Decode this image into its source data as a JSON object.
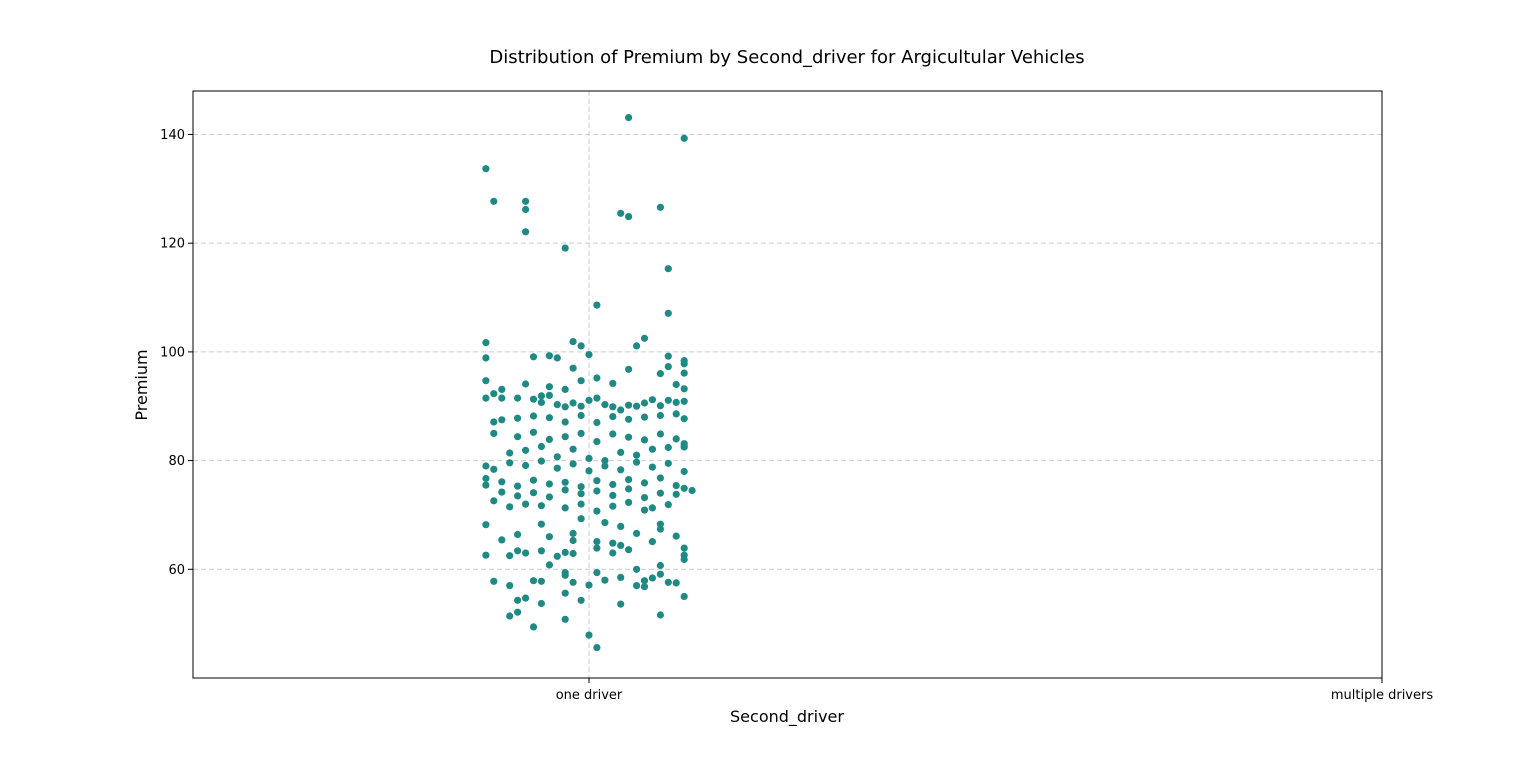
{
  "chart_data": {
    "type": "scatter",
    "subtype": "strip",
    "title": "Distribution of Premium by Second_driver for Argicultular Vehicles",
    "xlabel": "Second_driver",
    "ylabel": "Premium",
    "categories": [
      "one driver",
      "multiple drivers"
    ],
    "ylim": [
      40,
      148
    ],
    "yticks": [
      60,
      80,
      100,
      120,
      140
    ],
    "grid": true,
    "point_color": "#1f8a84",
    "series": [
      {
        "category": "one driver",
        "points": [
          [
            -0.13,
            133.7
          ],
          [
            -0.12,
            127.7
          ],
          [
            -0.08,
            126.2
          ],
          [
            -0.08,
            127.7
          ],
          [
            -0.08,
            122.1
          ],
          [
            -0.03,
            119.1
          ],
          [
            0.05,
            143.1
          ],
          [
            0.12,
            139.3
          ],
          [
            0.04,
            125.5
          ],
          [
            0.05,
            124.9
          ],
          [
            0.09,
            126.6
          ],
          [
            0.1,
            115.3
          ],
          [
            0.1,
            107.1
          ],
          [
            0.01,
            108.6
          ],
          [
            -0.13,
            101.7
          ],
          [
            -0.13,
            98.9
          ],
          [
            -0.07,
            99.1
          ],
          [
            -0.05,
            99.3
          ],
          [
            -0.04,
            98.9
          ],
          [
            -0.02,
            101.9
          ],
          [
            -0.01,
            101.1
          ],
          [
            0.0,
            99.5
          ],
          [
            0.07,
            102.5
          ],
          [
            0.06,
            101.1
          ],
          [
            0.1,
            99.2
          ],
          [
            0.12,
            98.4
          ],
          [
            0.12,
            97.8
          ],
          [
            0.05,
            96.8
          ],
          [
            -0.13,
            94.7
          ],
          [
            -0.12,
            92.3
          ],
          [
            -0.11,
            93.1
          ],
          [
            -0.13,
            91.5
          ],
          [
            -0.11,
            91.5
          ],
          [
            -0.09,
            91.5
          ],
          [
            -0.07,
            91.3
          ],
          [
            -0.06,
            91.9
          ],
          [
            -0.06,
            90.7
          ],
          [
            -0.05,
            92.0
          ],
          [
            -0.04,
            90.3
          ],
          [
            -0.03,
            89.9
          ],
          [
            -0.02,
            90.6
          ],
          [
            -0.01,
            90.0
          ],
          [
            0.0,
            91.1
          ],
          [
            0.01,
            91.5
          ],
          [
            0.02,
            90.3
          ],
          [
            0.03,
            89.9
          ],
          [
            0.04,
            89.3
          ],
          [
            0.05,
            90.2
          ],
          [
            0.06,
            90.0
          ],
          [
            0.07,
            90.6
          ],
          [
            0.08,
            91.2
          ],
          [
            0.09,
            90.1
          ],
          [
            0.1,
            91.1
          ],
          [
            0.11,
            90.7
          ],
          [
            0.12,
            90.9
          ],
          [
            0.12,
            93.2
          ],
          [
            0.11,
            94.0
          ],
          [
            0.09,
            96.0
          ],
          [
            0.12,
            96.1
          ],
          [
            0.1,
            97.3
          ],
          [
            -0.08,
            94.1
          ],
          [
            -0.05,
            93.6
          ],
          [
            -0.03,
            93.1
          ],
          [
            -0.01,
            94.7
          ],
          [
            0.01,
            95.2
          ],
          [
            0.03,
            94.2
          ],
          [
            -0.02,
            97.0
          ],
          [
            -0.12,
            87.1
          ],
          [
            -0.11,
            87.5
          ],
          [
            -0.09,
            87.8
          ],
          [
            -0.07,
            88.2
          ],
          [
            -0.05,
            87.9
          ],
          [
            -0.03,
            87.1
          ],
          [
            -0.01,
            88.3
          ],
          [
            0.01,
            87.0
          ],
          [
            0.03,
            88.1
          ],
          [
            0.05,
            87.6
          ],
          [
            0.07,
            88.0
          ],
          [
            0.09,
            88.3
          ],
          [
            0.11,
            88.6
          ],
          [
            0.12,
            87.7
          ],
          [
            -0.12,
            85.0
          ],
          [
            -0.09,
            84.4
          ],
          [
            -0.07,
            85.2
          ],
          [
            -0.05,
            83.9
          ],
          [
            -0.03,
            84.4
          ],
          [
            -0.01,
            85.0
          ],
          [
            0.01,
            83.5
          ],
          [
            0.03,
            84.9
          ],
          [
            0.05,
            84.3
          ],
          [
            0.07,
            83.8
          ],
          [
            0.09,
            84.9
          ],
          [
            0.11,
            84.0
          ],
          [
            0.12,
            83.1
          ],
          [
            0.12,
            82.5
          ],
          [
            -0.1,
            81.4
          ],
          [
            -0.08,
            81.9
          ],
          [
            -0.06,
            82.6
          ],
          [
            -0.04,
            80.7
          ],
          [
            -0.02,
            82.1
          ],
          [
            0.0,
            80.4
          ],
          [
            0.02,
            80.0
          ],
          [
            0.04,
            81.5
          ],
          [
            0.06,
            81.0
          ],
          [
            0.08,
            82.1
          ],
          [
            0.1,
            82.4
          ],
          [
            0.12,
            82.7
          ],
          [
            -0.13,
            79.0
          ],
          [
            -0.12,
            78.4
          ],
          [
            -0.1,
            79.6
          ],
          [
            -0.08,
            79.1
          ],
          [
            -0.06,
            79.9
          ],
          [
            -0.04,
            78.6
          ],
          [
            -0.02,
            79.4
          ],
          [
            0.0,
            78.1
          ],
          [
            0.02,
            79.0
          ],
          [
            0.04,
            78.3
          ],
          [
            0.06,
            79.7
          ],
          [
            0.08,
            78.8
          ],
          [
            0.1,
            79.5
          ],
          [
            0.12,
            78.0
          ],
          [
            -0.13,
            76.7
          ],
          [
            -0.13,
            75.5
          ],
          [
            -0.11,
            76.1
          ],
          [
            -0.09,
            75.3
          ],
          [
            -0.07,
            76.4
          ],
          [
            -0.05,
            75.7
          ],
          [
            -0.03,
            76.0
          ],
          [
            -0.01,
            75.2
          ],
          [
            0.01,
            76.3
          ],
          [
            0.03,
            75.6
          ],
          [
            0.05,
            76.5
          ],
          [
            0.07,
            75.9
          ],
          [
            0.09,
            76.8
          ],
          [
            0.11,
            75.4
          ],
          [
            0.12,
            74.9
          ],
          [
            0.13,
            74.5
          ],
          [
            -0.11,
            74.2
          ],
          [
            -0.09,
            73.5
          ],
          [
            -0.07,
            74.1
          ],
          [
            -0.05,
            73.3
          ],
          [
            -0.03,
            74.6
          ],
          [
            -0.01,
            73.9
          ],
          [
            0.01,
            74.4
          ],
          [
            0.03,
            73.6
          ],
          [
            0.05,
            74.8
          ],
          [
            0.07,
            73.2
          ],
          [
            0.09,
            74.0
          ],
          [
            0.11,
            73.8
          ],
          [
            -0.12,
            72.6
          ],
          [
            -0.1,
            71.5
          ],
          [
            -0.08,
            72.0
          ],
          [
            -0.06,
            71.7
          ],
          [
            -0.03,
            71.3
          ],
          [
            -0.01,
            72.0
          ],
          [
            0.01,
            70.7
          ],
          [
            0.03,
            71.6
          ],
          [
            0.05,
            72.3
          ],
          [
            0.07,
            70.9
          ],
          [
            0.08,
            71.3
          ],
          [
            0.1,
            71.9
          ],
          [
            -0.13,
            68.2
          ],
          [
            -0.06,
            68.3
          ],
          [
            -0.01,
            69.3
          ],
          [
            0.02,
            68.6
          ],
          [
            0.04,
            67.9
          ],
          [
            0.09,
            67.4
          ],
          [
            0.09,
            68.3
          ],
          [
            -0.11,
            65.4
          ],
          [
            -0.09,
            66.4
          ],
          [
            -0.05,
            66.0
          ],
          [
            -0.02,
            66.6
          ],
          [
            -0.02,
            65.3
          ],
          [
            0.01,
            65.1
          ],
          [
            0.03,
            64.8
          ],
          [
            0.04,
            64.4
          ],
          [
            0.06,
            66.6
          ],
          [
            0.08,
            65.1
          ],
          [
            0.11,
            66.1
          ],
          [
            0.12,
            63.9
          ],
          [
            -0.13,
            62.6
          ],
          [
            -0.1,
            62.5
          ],
          [
            -0.09,
            63.4
          ],
          [
            -0.08,
            63.0
          ],
          [
            -0.06,
            63.4
          ],
          [
            -0.04,
            62.4
          ],
          [
            -0.03,
            63.1
          ],
          [
            -0.02,
            62.9
          ],
          [
            0.01,
            63.9
          ],
          [
            0.03,
            63.0
          ],
          [
            0.05,
            63.6
          ],
          [
            0.12,
            62.6
          ],
          [
            0.12,
            61.8
          ],
          [
            -0.12,
            57.8
          ],
          [
            -0.1,
            57.0
          ],
          [
            -0.07,
            57.9
          ],
          [
            -0.06,
            57.8
          ],
          [
            -0.03,
            58.9
          ],
          [
            -0.02,
            57.6
          ],
          [
            0.0,
            57.1
          ],
          [
            0.01,
            59.4
          ],
          [
            0.02,
            58.0
          ],
          [
            0.04,
            58.5
          ],
          [
            0.06,
            57.0
          ],
          [
            0.07,
            57.9
          ],
          [
            0.08,
            58.4
          ],
          [
            0.09,
            59.1
          ],
          [
            0.1,
            57.6
          ],
          [
            0.11,
            57.5
          ],
          [
            0.09,
            60.7
          ],
          [
            0.06,
            60.0
          ],
          [
            -0.05,
            60.8
          ],
          [
            -0.03,
            59.4
          ],
          [
            -0.09,
            54.3
          ],
          [
            -0.08,
            54.7
          ],
          [
            -0.06,
            53.7
          ],
          [
            -0.03,
            55.6
          ],
          [
            -0.01,
            54.3
          ],
          [
            0.04,
            53.6
          ],
          [
            0.07,
            56.8
          ],
          [
            0.12,
            55.0
          ],
          [
            -0.1,
            51.4
          ],
          [
            -0.09,
            52.1
          ],
          [
            -0.07,
            49.4
          ],
          [
            -0.03,
            50.8
          ],
          [
            0.09,
            51.6
          ],
          [
            0.0,
            47.9
          ],
          [
            0.01,
            45.6
          ]
        ]
      },
      {
        "category": "multiple drivers",
        "points": []
      }
    ]
  }
}
